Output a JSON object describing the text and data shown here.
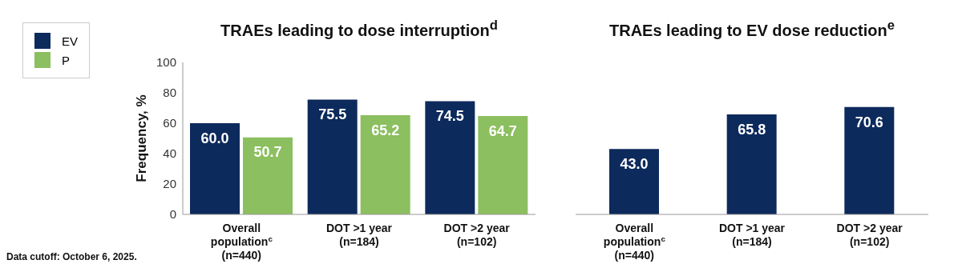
{
  "chart_data": [
    {
      "type": "bar",
      "title": "TRAEs leading to dose interruption$^{d}$",
      "ylabel": "Frequency, %",
      "categories": [
        "Overall\npopulation$^{c}$\n(n=440)",
        "DOT >1 year\n(n=184)",
        "DOT >2 year\n(n=102)"
      ],
      "series": [
        {
          "name": "EV",
          "color": "#0d2a5c",
          "values": [
            60.0,
            75.5,
            74.5
          ],
          "value_labels": [
            "60.0",
            "75.5",
            "74.5"
          ]
        },
        {
          "name": "P",
          "color": "#8cbf5f",
          "values": [
            50.7,
            65.2,
            64.7
          ],
          "value_labels": [
            "50.7",
            "65.2",
            "64.7"
          ]
        }
      ],
      "ylim": [
        0,
        100
      ],
      "yticks": [
        0,
        20,
        40,
        60,
        80,
        100
      ],
      "legend": "top left",
      "annotations": [
        "Data cutoff: October 6, 2025."
      ]
    },
    {
      "type": "bar",
      "title": "TRAEs leading to EV dose reduction$^{e}$",
      "categories": [
        "Overall\npopulation$^{c}$\n(n=440)",
        "DOT >1 year\n(n=184)",
        "DOT >2 year\n(n=102)"
      ],
      "series": [
        {
          "color": "#0d2a5c",
          "values": [
            43.0,
            65.8,
            70.6
          ],
          "value_labels": [
            "43.0",
            "65.8",
            "70.6"
          ]
        }
      ],
      "ylim": [
        0,
        100
      ],
      "yticks": [
        0,
        20,
        40,
        60,
        80,
        100
      ],
      "tick_labels": "x"
    }
  ]
}
